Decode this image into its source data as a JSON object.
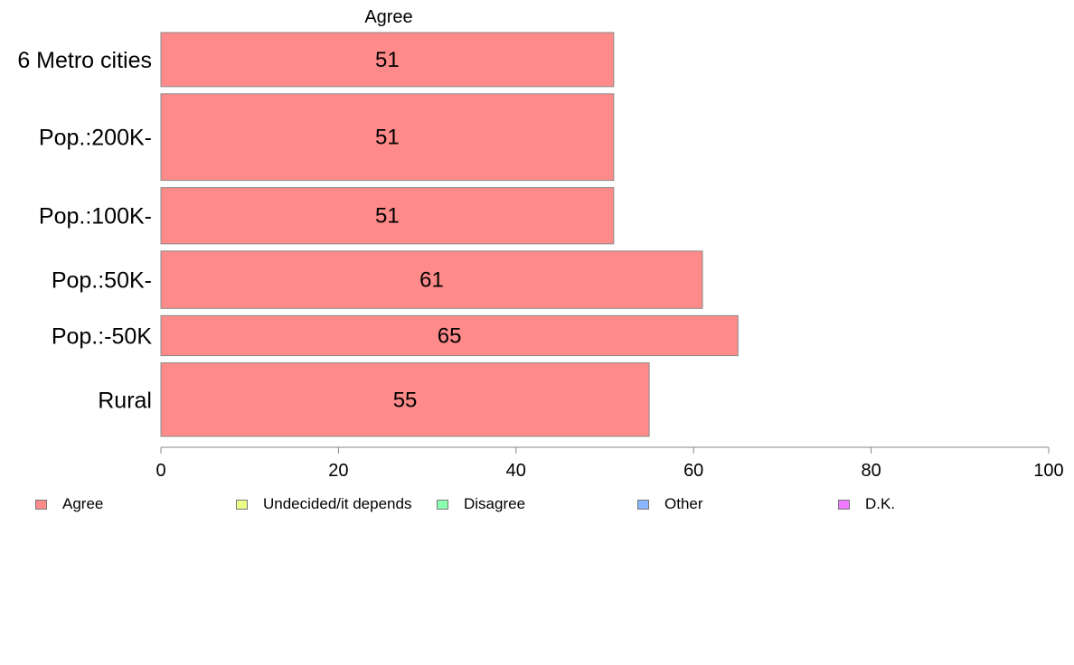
{
  "chart_data": {
    "type": "bar",
    "orientation": "horizontal",
    "title": "Agree",
    "xlim": [
      0,
      100
    ],
    "xticks": [
      0,
      20,
      40,
      60,
      80,
      100
    ],
    "grid": false,
    "legend_position": "bottom",
    "categories": [
      "6 Metro cities",
      "Pop.:200K-",
      "Pop.:100K-",
      "Pop.:50K-",
      "Pop.:-50K",
      "Rural"
    ],
    "relative_widths": [
      1.0,
      1.6,
      1.04,
      1.06,
      0.74,
      1.36
    ],
    "series": [
      {
        "name": "Agree",
        "values": [
          51,
          51,
          51,
          61,
          65,
          55
        ],
        "color": "#ff8a8a"
      }
    ],
    "legend": [
      {
        "label": "Agree",
        "color": "#ff8a8a"
      },
      {
        "label": "Undecided/it depends",
        "color": "#eaff8a"
      },
      {
        "label": "Disagree",
        "color": "#8affb0"
      },
      {
        "label": "Other",
        "color": "#8ab6ff"
      },
      {
        "label": "D.K.",
        "color": "#ee7aff"
      }
    ]
  }
}
